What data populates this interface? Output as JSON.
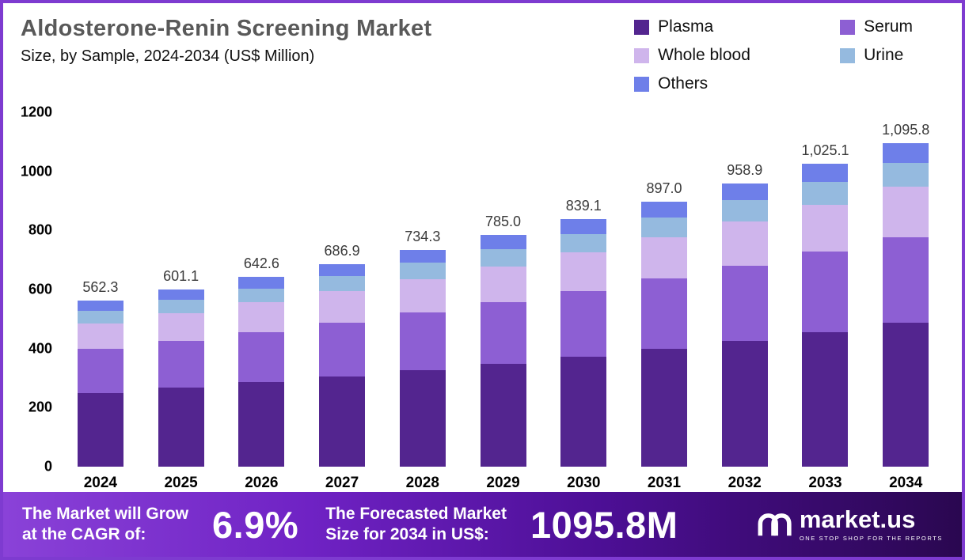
{
  "header": {
    "title": "Aldosterone-Renin Screening Market",
    "subtitle": "Size, by Sample, 2024-2034 (US$ Million)"
  },
  "chart_data": {
    "type": "bar",
    "stacked": true,
    "title": "Aldosterone-Renin Screening Market Size, by Sample, 2024-2034 (US$ Million)",
    "categories": [
      "2024",
      "2025",
      "2026",
      "2027",
      "2028",
      "2029",
      "2030",
      "2031",
      "2032",
      "2033",
      "2034"
    ],
    "series": [
      {
        "name": "Plasma",
        "color": "#53258f",
        "values": [
          250,
          268,
          286,
          306,
          327,
          349,
          373,
          399,
          427,
          456,
          488
        ]
      },
      {
        "name": "Serum",
        "color": "#8d5fd3",
        "values": [
          149,
          159,
          170,
          182,
          195,
          208,
          222,
          238,
          254,
          272,
          290
        ]
      },
      {
        "name": "Whole blood",
        "color": "#cfb5ec",
        "values": [
          87,
          93,
          100,
          106,
          114,
          122,
          130,
          139,
          149,
          159,
          170
        ]
      },
      {
        "name": "Urine",
        "color": "#95badf",
        "values": [
          42,
          45,
          48,
          52,
          55,
          59,
          63,
          67,
          72,
          77,
          82
        ]
      },
      {
        "name": "Others",
        "color": "#6e7fe9",
        "values": [
          34,
          36,
          39,
          41,
          43,
          47,
          51,
          54,
          57,
          61,
          66
        ]
      }
    ],
    "totals": [
      562.3,
      601.1,
      642.6,
      686.9,
      734.3,
      785.0,
      839.1,
      897.0,
      958.9,
      1025.1,
      1095.8
    ],
    "totals_display": [
      "562.3",
      "601.1",
      "642.6",
      "686.9",
      "734.3",
      "785.0",
      "839.1",
      "897.0",
      "958.9",
      "1,025.1",
      "1,095.8"
    ],
    "ylim": [
      0,
      1200
    ],
    "yticks": [
      0,
      200,
      400,
      600,
      800,
      1000,
      1200
    ],
    "legend_position": "top-right",
    "grid": false
  },
  "banner": {
    "cagr_label_line1": "The Market will Grow",
    "cagr_label_line2": "at the CAGR of:",
    "cagr_value": "6.9%",
    "forecast_label_line1": "The Forecasted Market",
    "forecast_label_line2": "Size for 2034 in US$:",
    "forecast_value": "1095.8M",
    "brand": "market.us",
    "brand_tagline": "ONE STOP SHOP FOR THE REPORTS"
  }
}
